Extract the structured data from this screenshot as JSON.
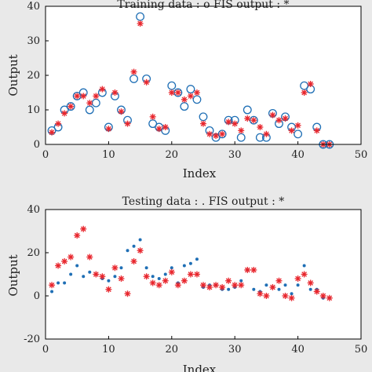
{
  "chart_data": [
    {
      "type": "scatter",
      "title": "Training data : o FIS output : *",
      "xlabel": "Index",
      "ylabel": "Output",
      "xlim": [
        0,
        50
      ],
      "ylim": [
        0,
        40
      ],
      "xticks": [
        "0",
        "10",
        "20",
        "30",
        "40",
        "50"
      ],
      "yticks": [
        "0",
        "10",
        "20",
        "30",
        "40"
      ],
      "grid": false,
      "series": [
        {
          "name": "o",
          "marker": "circle-open",
          "color": "#1f6fb5",
          "x": [
            1,
            2,
            3,
            4,
            5,
            6,
            7,
            8,
            9,
            10,
            11,
            12,
            13,
            14,
            15,
            16,
            17,
            18,
            19,
            20,
            21,
            22,
            23,
            24,
            25,
            26,
            27,
            28,
            29,
            30,
            31,
            32,
            33,
            34,
            35,
            36,
            37,
            38,
            39,
            40,
            41,
            42,
            43,
            44,
            45
          ],
          "y": [
            4,
            5,
            10,
            11,
            14,
            15,
            10,
            12,
            15,
            5,
            14,
            10,
            7,
            19,
            37,
            19,
            6,
            5,
            4,
            17,
            15,
            11,
            16,
            13,
            8,
            4,
            2,
            3,
            7,
            7,
            2,
            10,
            7,
            2,
            2,
            9,
            6,
            8,
            5,
            3,
            17,
            16,
            5,
            0,
            0
          ]
        },
        {
          "name": "*",
          "marker": "asterisk",
          "color": "#e8262d",
          "x": [
            1,
            2,
            3,
            4,
            5,
            6,
            7,
            8,
            9,
            10,
            11,
            12,
            13,
            14,
            15,
            16,
            17,
            18,
            19,
            20,
            21,
            22,
            23,
            24,
            25,
            26,
            27,
            28,
            29,
            30,
            31,
            32,
            33,
            34,
            35,
            36,
            37,
            38,
            39,
            40,
            41,
            42,
            43,
            44,
            45
          ],
          "y": [
            3.5,
            6,
            9,
            11,
            14,
            14,
            12,
            14,
            16,
            4.5,
            15,
            9.5,
            6,
            21,
            35,
            18,
            8,
            4.5,
            5,
            15,
            15,
            13,
            14,
            15,
            6,
            3,
            2.5,
            3,
            6.5,
            6,
            4,
            7.5,
            7,
            5,
            3,
            8.5,
            7,
            7.5,
            4,
            5.5,
            15,
            17.5,
            4,
            0,
            0
          ]
        }
      ]
    },
    {
      "type": "scatter",
      "title": "Testing data : . FIS output : *",
      "xlabel": "Index",
      "ylabel": "Output",
      "xlim": [
        0,
        50
      ],
      "ylim": [
        -20,
        40
      ],
      "xticks": [
        "0",
        "10",
        "20",
        "30",
        "40",
        "50"
      ],
      "yticks": [
        "-20",
        "0",
        "20",
        "40"
      ],
      "grid": false,
      "series": [
        {
          "name": ".",
          "marker": "dot",
          "color": "#1f6fb5",
          "x": [
            1,
            2,
            3,
            4,
            5,
            6,
            7,
            8,
            9,
            10,
            11,
            12,
            13,
            14,
            15,
            16,
            17,
            18,
            19,
            20,
            21,
            22,
            23,
            24,
            25,
            26,
            27,
            28,
            29,
            30,
            31,
            32,
            33,
            34,
            35,
            36,
            37,
            38,
            39,
            40,
            41,
            42,
            43,
            44,
            45
          ],
          "y": [
            2,
            6,
            6,
            10,
            14,
            9,
            11,
            10,
            8,
            7,
            9,
            13,
            21,
            23,
            26,
            13,
            9,
            8,
            10,
            13,
            6,
            14,
            15,
            17,
            4,
            5,
            5,
            3,
            3,
            4,
            7,
            12,
            3,
            2,
            5,
            4,
            3,
            5,
            1,
            5,
            14,
            3,
            3,
            -1,
            -1
          ]
        },
        {
          "name": "*",
          "marker": "asterisk",
          "color": "#e8262d",
          "x": [
            1,
            2,
            3,
            4,
            5,
            6,
            7,
            8,
            9,
            10,
            11,
            12,
            13,
            14,
            15,
            16,
            17,
            18,
            19,
            20,
            21,
            22,
            23,
            24,
            25,
            26,
            27,
            28,
            29,
            30,
            31,
            32,
            33,
            34,
            35,
            36,
            37,
            38,
            39,
            40,
            41,
            42,
            43,
            44,
            45
          ],
          "y": [
            5,
            14,
            16,
            18,
            28,
            31,
            18,
            10,
            9,
            3,
            13,
            8,
            1,
            16,
            21,
            9,
            6,
            5,
            7,
            11,
            5,
            7,
            10,
            10,
            5,
            4,
            5,
            4,
            7,
            5,
            5,
            12,
            12,
            1,
            0,
            4,
            7,
            0,
            -1,
            8,
            10,
            6,
            2,
            0,
            -1
          ]
        }
      ]
    }
  ]
}
